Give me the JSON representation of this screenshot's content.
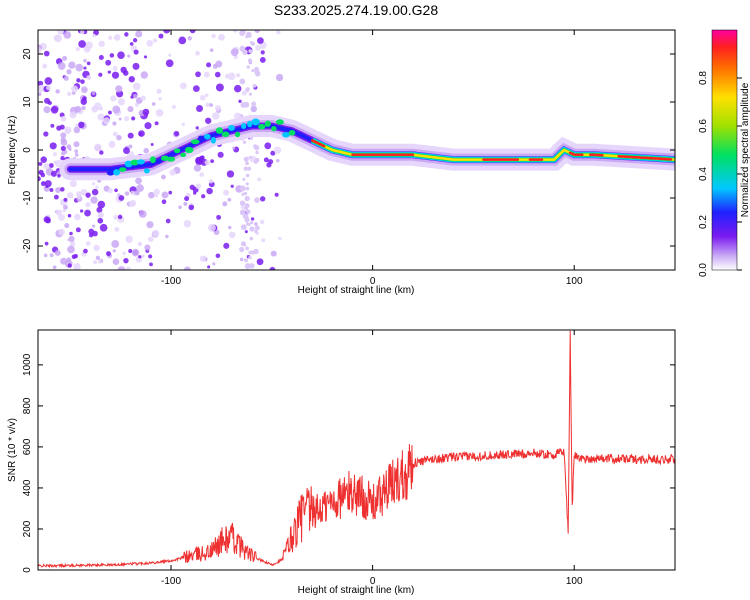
{
  "title": "S233.2025.274.19.00.G28",
  "chart_data": [
    {
      "type": "heatmap",
      "name": "spectrogram",
      "xlabel": "Height of straight line (km)",
      "ylabel": "Frequency (Hz)",
      "xlim": [
        -166,
        150
      ],
      "ylim": [
        -25,
        25
      ],
      "xticks": [
        -100,
        0,
        100
      ],
      "yticks": [
        -20,
        -10,
        0,
        10,
        20
      ],
      "colorbar": {
        "label": "Normalized spectral amplitude",
        "range": [
          0,
          1
        ],
        "ticks": [
          "0.0",
          "0.2",
          "0.4",
          "0.6",
          "0.8"
        ],
        "tick_values": [
          0.0,
          0.2,
          0.4,
          0.6,
          0.8
        ],
        "colors": [
          "#ffffff",
          "#c9a8f5",
          "#7a1cf0",
          "#2020ff",
          "#00c8ff",
          "#00e060",
          "#a0e000",
          "#ffe000",
          "#ff7000",
          "#ff2020",
          "#ff00a0"
        ]
      },
      "ridge": {
        "x": [
          -150,
          -130,
          -110,
          -100,
          -90,
          -80,
          -70,
          -60,
          -50,
          -40,
          -35,
          -30,
          -20,
          -10,
          0,
          20,
          40,
          60,
          80,
          90,
          95,
          100,
          110,
          150
        ],
        "f": [
          -4,
          -4,
          -3,
          -1,
          1,
          3,
          4,
          5,
          5,
          4,
          3,
          2,
          0,
          -1,
          -1,
          -1,
          -2,
          -2,
          -2,
          -2,
          0,
          -1,
          -1,
          -2
        ]
      }
    },
    {
      "type": "line",
      "name": "snr",
      "xlabel": "Height of straight line (km)",
      "ylabel": "SNR (10 * v/v)",
      "xlim": [
        -166,
        150
      ],
      "ylim": [
        0,
        1170
      ],
      "xticks": [
        -100,
        0,
        100
      ],
      "yticks": [
        0,
        200,
        400,
        600,
        800,
        1000
      ],
      "color": "#ee3030",
      "series": [
        {
          "name": "SNR",
          "x": [
            -166,
            -150,
            -130,
            -110,
            -100,
            -90,
            -80,
            -75,
            -70,
            -65,
            -60,
            -55,
            -50,
            -45,
            -40,
            -35,
            -30,
            -25,
            -20,
            -15,
            -10,
            -5,
            0,
            10,
            20,
            30,
            40,
            60,
            80,
            90,
            95,
            97,
            98,
            99,
            100,
            105,
            110,
            130,
            150
          ],
          "y": [
            20,
            22,
            25,
            35,
            45,
            70,
            90,
            140,
            160,
            110,
            70,
            45,
            25,
            50,
            160,
            270,
            280,
            300,
            330,
            360,
            380,
            360,
            320,
            420,
            520,
            540,
            550,
            560,
            570,
            560,
            580,
            180,
            1150,
            300,
            560,
            540,
            545,
            540,
            540
          ]
        }
      ]
    }
  ]
}
